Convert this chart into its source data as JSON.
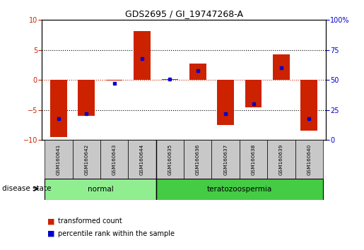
{
  "title": "GDS2695 / GI_19747268-A",
  "samples": [
    "GSM160641",
    "GSM160642",
    "GSM160643",
    "GSM160644",
    "GSM160635",
    "GSM160636",
    "GSM160637",
    "GSM160638",
    "GSM160639",
    "GSM160640"
  ],
  "transformed_count": [
    -9.5,
    -6.0,
    -0.1,
    8.2,
    0.1,
    2.7,
    -7.5,
    -4.5,
    4.3,
    -8.5
  ],
  "percentile_rank": [
    18,
    22,
    47,
    68,
    51,
    58,
    22,
    30,
    60,
    18
  ],
  "groups": [
    {
      "label": "normal",
      "start": 0,
      "end": 4,
      "color": "#90ee90"
    },
    {
      "label": "teratozoospermia",
      "start": 4,
      "end": 10,
      "color": "#44cc44"
    }
  ],
  "ylim_left": [
    -10,
    10
  ],
  "ylim_right": [
    0,
    100
  ],
  "yticks_left": [
    -10,
    -5,
    0,
    5,
    10
  ],
  "yticks_right": [
    0,
    25,
    50,
    75,
    100
  ],
  "bar_color": "#cc2200",
  "dot_color": "#0000cc",
  "axis_color_left": "#cc2200",
  "axis_color_right": "#0000cc",
  "disease_state_label": "disease state",
  "legend_items": [
    "transformed count",
    "percentile rank within the sample"
  ],
  "bar_width": 0.6,
  "sep_index": 3.5,
  "n_samples": 10
}
